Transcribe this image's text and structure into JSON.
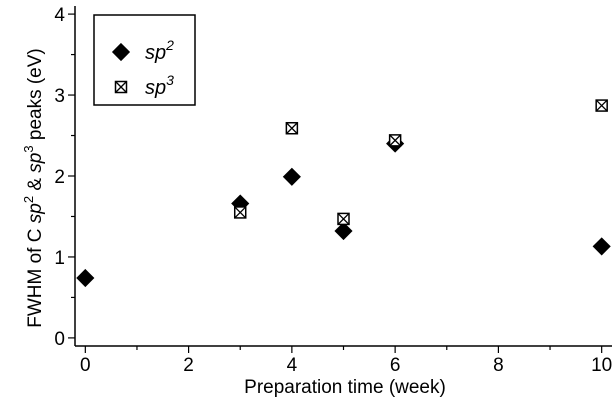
{
  "chart_data": {
    "type": "scatter",
    "xlabel": "Preparation time (week)",
    "ylabel": {
      "prefix": "FWHM of C ",
      "term1": "sp",
      "term1_sup": "2",
      "between": " & ",
      "term2": "sp",
      "term2_sup": "3",
      "suffix": " peaks (eV)"
    },
    "xlim": [
      -0.2,
      10.2
    ],
    "ylim": [
      -0.1,
      4.1
    ],
    "xticks": [
      0,
      2,
      4,
      6,
      8,
      10
    ],
    "yticks": [
      0,
      1,
      2,
      3,
      4
    ],
    "grid": false,
    "legend_position": "top-left",
    "series": [
      {
        "base": "sp",
        "sup": "2",
        "marker": "filled-diamond",
        "color": "#000000",
        "points": [
          {
            "x": 0,
            "y": 0.74
          },
          {
            "x": 3,
            "y": 1.66
          },
          {
            "x": 4,
            "y": 1.99
          },
          {
            "x": 5,
            "y": 1.32
          },
          {
            "x": 6,
            "y": 2.4
          },
          {
            "x": 10,
            "y": 1.13
          }
        ]
      },
      {
        "base": "sp",
        "sup": "3",
        "marker": "crossed-square",
        "color": "#000000",
        "points": [
          {
            "x": 3,
            "y": 1.55
          },
          {
            "x": 4,
            "y": 2.59
          },
          {
            "x": 5,
            "y": 1.47
          },
          {
            "x": 6,
            "y": 2.44
          },
          {
            "x": 10,
            "y": 2.87
          }
        ]
      }
    ]
  }
}
